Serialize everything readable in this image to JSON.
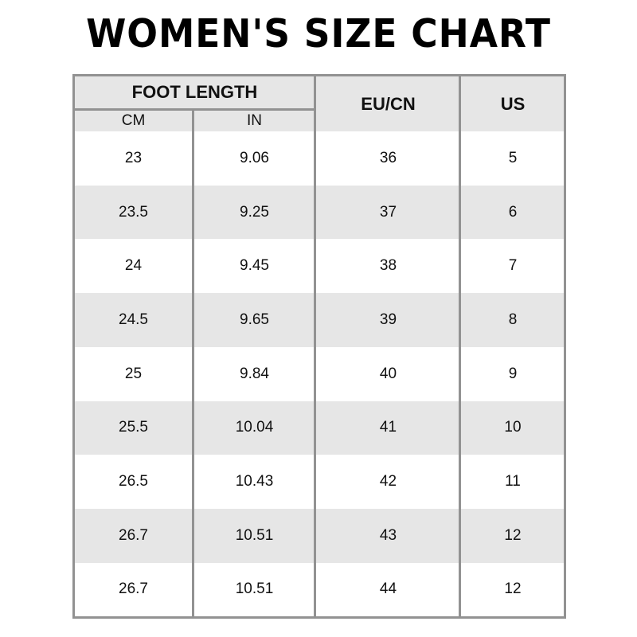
{
  "title": "WOMEN'S SIZE CHART",
  "header": {
    "group": "FOOT LENGTH",
    "cm": "CM",
    "in": "IN",
    "eu": "EU/CN",
    "us": "US"
  },
  "rows": [
    [
      "23",
      "9.06",
      "36",
      "5"
    ],
    [
      "23.5",
      "9.25",
      "37",
      "6"
    ],
    [
      "24",
      "9.45",
      "38",
      "7"
    ],
    [
      "24.5",
      "9.65",
      "39",
      "8"
    ],
    [
      "25",
      "9.84",
      "40",
      "9"
    ],
    [
      "25.5",
      "10.04",
      "41",
      "10"
    ],
    [
      "26.5",
      "10.43",
      "42",
      "11"
    ],
    [
      "26.7",
      "10.51",
      "43",
      "12"
    ],
    [
      "26.7",
      "10.51",
      "44",
      "12"
    ]
  ],
  "colors": {
    "border": "#929292",
    "stripe": "#e6e6e6"
  }
}
